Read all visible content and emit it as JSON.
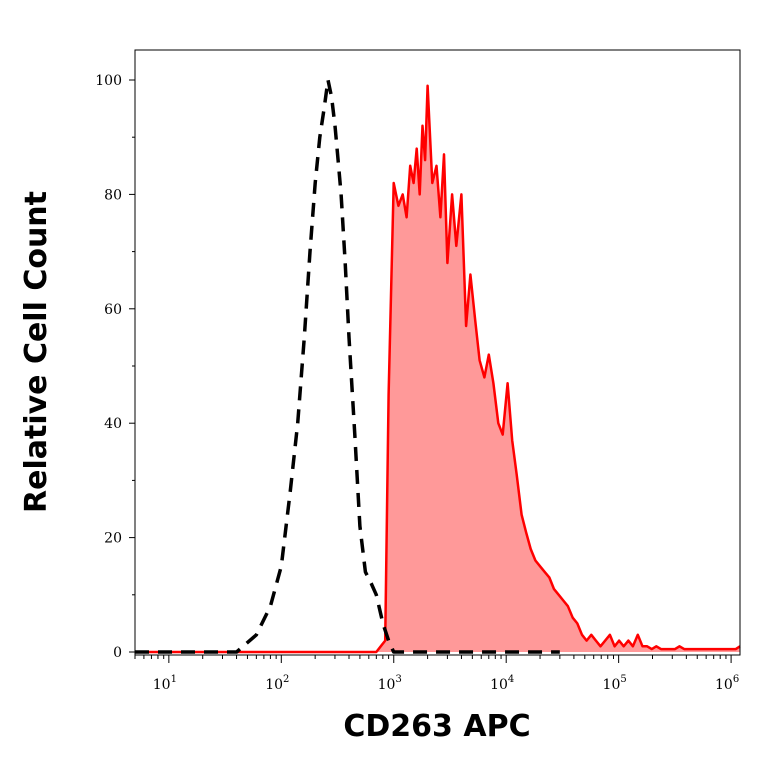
{
  "chart_data": {
    "type": "area",
    "xlabel": "CD263 APC",
    "ylabel": "Relative Cell Count",
    "x_scale": "log",
    "xlim": [
      5,
      1200000
    ],
    "ylim": [
      0,
      103
    ],
    "y_ticks": [
      0,
      20,
      40,
      60,
      80,
      100
    ],
    "x_ticks": [
      {
        "base": "10",
        "exp": "1",
        "value": 10
      },
      {
        "base": "10",
        "exp": "2",
        "value": 100
      },
      {
        "base": "10",
        "exp": "3",
        "value": 1000
      },
      {
        "base": "10",
        "exp": "4",
        "value": 10000
      },
      {
        "base": "10",
        "exp": "5",
        "value": 100000
      },
      {
        "base": "10",
        "exp": "6",
        "value": 1000000
      }
    ],
    "grid": false,
    "series": [
      {
        "style": "dashed",
        "color": "#000000",
        "fill": "none",
        "x": [
          5,
          40,
          60,
          80,
          100,
          120,
          140,
          160,
          180,
          200,
          220,
          240,
          260,
          280,
          300,
          320,
          340,
          370,
          400,
          450,
          500,
          560,
          630,
          700,
          800,
          900,
          1000,
          1200,
          2000,
          10000,
          30000
        ],
        "y": [
          0,
          0,
          3,
          8,
          15,
          28,
          40,
          55,
          70,
          82,
          90,
          95,
          100,
          97,
          92,
          86,
          80,
          68,
          55,
          38,
          22,
          14,
          12,
          10,
          5,
          2,
          0,
          0,
          0,
          0,
          0
        ]
      },
      {
        "style": "solid",
        "color": "#ff0000",
        "fill": "#ff9999",
        "x": [
          5,
          700,
          840,
          900,
          1000,
          1100,
          1200,
          1300,
          1400,
          1500,
          1600,
          1700,
          1800,
          1900,
          2000,
          2200,
          2400,
          2600,
          2800,
          3000,
          3300,
          3600,
          4000,
          4400,
          4800,
          5300,
          5800,
          6400,
          7000,
          7700,
          8500,
          9300,
          10300,
          11300,
          12400,
          13700,
          15000,
          16500,
          18200,
          20000,
          22000,
          24200,
          26600,
          29300,
          32200,
          35400,
          39000,
          42900,
          47200,
          51900,
          57100,
          62800,
          69000,
          76000,
          83600,
          92000,
          101000,
          111000,
          122000,
          134000,
          148000,
          163000,
          179000,
          197000,
          216000,
          238000,
          262000,
          288000,
          317000,
          348000,
          383000,
          421000,
          464000,
          510000,
          561000,
          617000,
          679000,
          746000,
          821000,
          903000,
          993000,
          1100000,
          1200000
        ],
        "y": [
          0,
          0,
          2,
          45,
          82,
          78,
          80,
          76,
          85,
          82,
          88,
          80,
          92,
          86,
          99,
          82,
          85,
          76,
          87,
          68,
          80,
          71,
          80,
          57,
          66,
          58,
          51,
          48,
          52,
          47,
          40,
          38,
          47,
          37,
          31,
          24,
          21,
          18,
          16,
          15,
          14,
          13,
          11,
          10,
          9,
          8,
          6,
          5,
          3,
          2,
          3,
          2,
          1,
          2,
          3,
          1,
          2,
          1,
          2,
          1,
          3,
          1,
          1,
          0.5,
          1,
          0.5,
          0.5,
          0.5,
          0.5,
          1,
          0.5,
          0.5,
          0.5,
          0.5,
          0.5,
          0.5,
          0.5,
          0.5,
          0.5,
          0.5,
          0.5,
          0.5,
          1
        ]
      }
    ]
  }
}
